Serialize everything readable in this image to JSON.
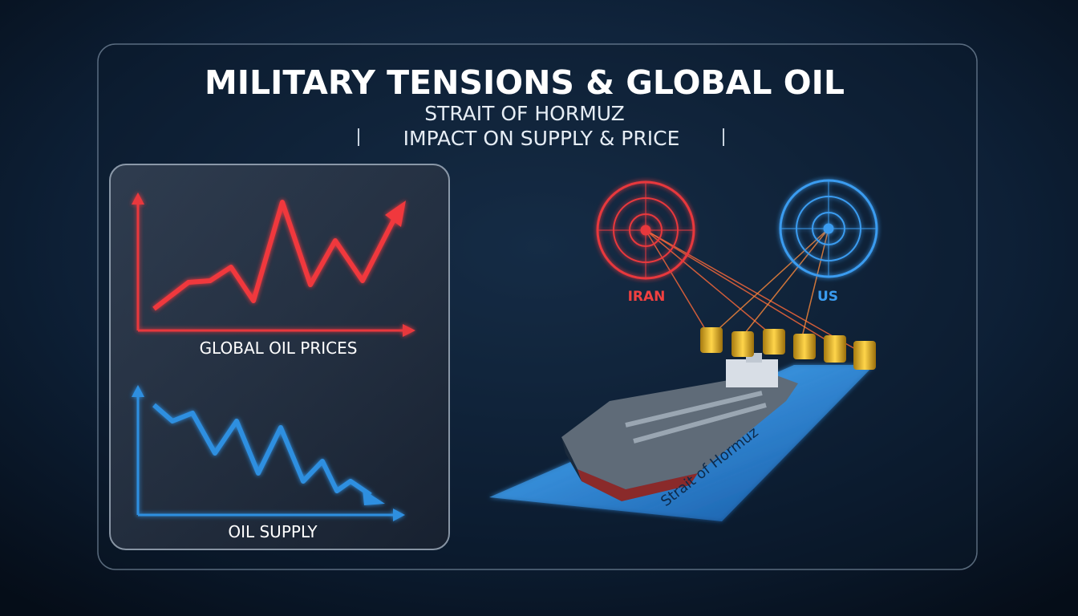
{
  "header": {
    "title": "MILITARY TENSIONS & GLOBAL OIL",
    "subtitle": "STRAIT OF HORMUZ",
    "tagline": "IMPACT ON SUPPLY & PRICE"
  },
  "panel": {
    "top_label": "GLOBAL OIL PRICES",
    "bottom_label": "OIL SUPPLY"
  },
  "scene": {
    "left_radar": "IRAN",
    "right_radar": "US",
    "strait_label": "Strait of Hormuz"
  }
}
